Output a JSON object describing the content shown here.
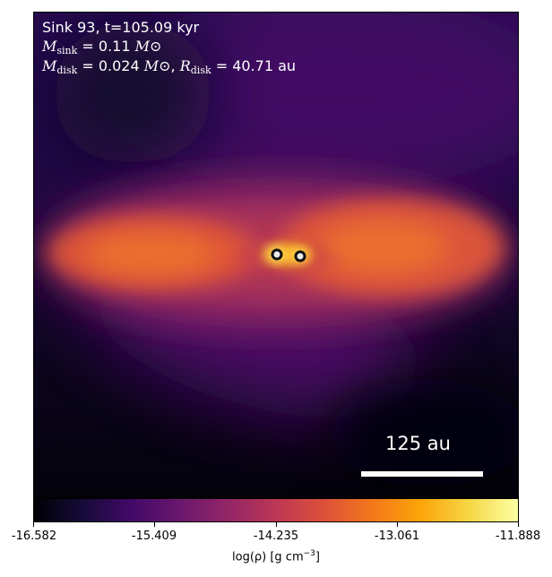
{
  "annotation": {
    "line1": "Sink 93, t=105.09 kyr",
    "m_sink_symbol": "M",
    "m_sink_sub": "sink",
    "m_sink_value": "= 0.11",
    "m_disk_symbol": "M",
    "m_disk_sub": "disk",
    "m_disk_value": "= 0.024",
    "r_disk_symbol": "R",
    "r_disk_sub": "disk",
    "r_disk_value": "= 40.71 au",
    "msun_symbol": "M⊙"
  },
  "scale_bar": {
    "label": "125 au"
  },
  "colorbar": {
    "ticks": [
      "-16.582",
      "-15.409",
      "-14.235",
      "-13.061",
      "-11.888"
    ],
    "label_prefix": "log(ρ) [g cm",
    "label_exp": "−3",
    "label_suffix": "]",
    "colormap": "inferno"
  },
  "sinks": {
    "count": 2
  }
}
